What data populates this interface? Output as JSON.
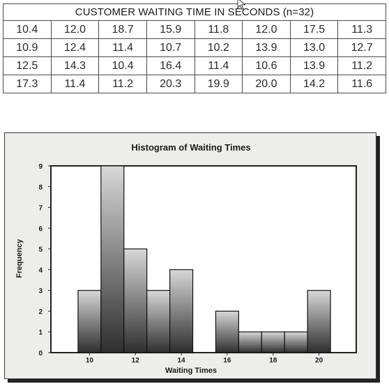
{
  "table": {
    "title": "CUSTOMER WAITING TIME IN SECONDS (n=32)",
    "rows": [
      [
        "10.4",
        "12.0",
        "18.7",
        "15.9",
        "11.8",
        "12.0",
        "17.5",
        "11.3"
      ],
      [
        "10.9",
        "12.4",
        "11.4",
        "10.7",
        "10.2",
        "13.9",
        "13.0",
        "12.7"
      ],
      [
        "12.5",
        "14.3",
        "10.4",
        "16.4",
        "11.4",
        "10.6",
        "13.9",
        "11.2"
      ],
      [
        "17.3",
        "11.4",
        "11.2",
        "20.3",
        "19.9",
        "20.0",
        "14.2",
        "11.6"
      ]
    ]
  },
  "chart_data": {
    "type": "bar",
    "title": "Histogram of Waiting Times",
    "xlabel": "Waiting Times",
    "ylabel": "Frequency",
    "bin_edges": [
      9.5,
      10.5,
      11.5,
      12.5,
      13.5,
      14.5,
      15.5,
      16.5,
      17.5,
      18.5,
      19.5,
      20.5
    ],
    "values": [
      3,
      9,
      5,
      3,
      4,
      0,
      2,
      1,
      1,
      1,
      3
    ],
    "xlim": [
      8.5,
      21.5
    ],
    "ylim": [
      0,
      9
    ],
    "x_ticks": [
      "10",
      "12",
      "14",
      "16",
      "18",
      "20"
    ],
    "y_ticks": [
      "0",
      "1",
      "2",
      "3",
      "4",
      "5",
      "6",
      "7",
      "8",
      "9"
    ],
    "grid": false,
    "colors": {
      "bar_top": "#d8d8d8",
      "bar_bottom": "#2e2e2e",
      "panel": "#ededeb",
      "plot": "#ffffff"
    }
  }
}
